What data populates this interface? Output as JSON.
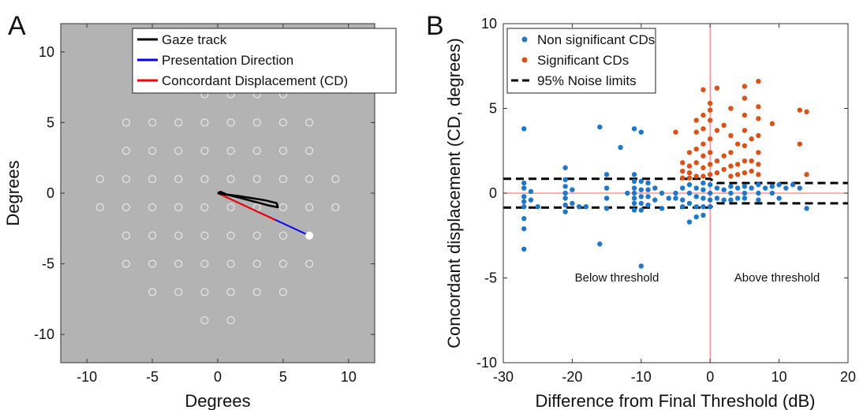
{
  "panel_a": {
    "letter": "A",
    "xlabel": "Degrees",
    "ylabel": "Degrees",
    "legend": [
      {
        "label": "Gaze track",
        "color": "#000000"
      },
      {
        "label": "Presentation Direction",
        "color": "#0000ff"
      },
      {
        "label": "Concordant Displacement (CD)",
        "color": "#ff0000"
      }
    ]
  },
  "panel_b": {
    "letter": "B",
    "xlabel": "Difference from Final Threshold (dB)",
    "ylabel": "Concordant displacement (CD, degrees)",
    "legend": [
      {
        "label": "Non significant CDs",
        "color": "#1f77c9"
      },
      {
        "label": "Significant CDs",
        "color": "#d95319"
      },
      {
        "label": "95% Noise limits",
        "color": "#000000"
      }
    ],
    "annotation_left": "Below threshold",
    "annotation_right": "Above threshold"
  },
  "chart_data": [
    {
      "type": "scatter",
      "panel": "A",
      "background": "#b3b3b3",
      "xlim": [
        -12,
        12
      ],
      "ylim": [
        -12,
        12
      ],
      "xticks": [
        -10,
        -5,
        0,
        5,
        10
      ],
      "yticks": [
        -10,
        -5,
        0,
        5,
        10
      ],
      "grid": false,
      "legend_position": "top-right",
      "stimulus_grid": [
        [
          -1,
          7
        ],
        [
          1,
          7
        ],
        [
          3,
          7
        ],
        [
          5,
          7
        ],
        [
          -7,
          5
        ],
        [
          -5,
          5
        ],
        [
          -3,
          5
        ],
        [
          -1,
          5
        ],
        [
          1,
          5
        ],
        [
          3,
          5
        ],
        [
          5,
          5
        ],
        [
          7,
          5
        ],
        [
          -7,
          3
        ],
        [
          -5,
          3
        ],
        [
          -3,
          3
        ],
        [
          -1,
          3
        ],
        [
          1,
          3
        ],
        [
          3,
          3
        ],
        [
          5,
          3
        ],
        [
          7,
          3
        ],
        [
          -9,
          1
        ],
        [
          -7,
          1
        ],
        [
          -5,
          1
        ],
        [
          -3,
          1
        ],
        [
          -1,
          1
        ],
        [
          1,
          1
        ],
        [
          3,
          1
        ],
        [
          5,
          1
        ],
        [
          7,
          1
        ],
        [
          9,
          1
        ],
        [
          -9,
          -1
        ],
        [
          -7,
          -1
        ],
        [
          -5,
          -1
        ],
        [
          -3,
          -1
        ],
        [
          -1,
          -1
        ],
        [
          1,
          -1
        ],
        [
          3,
          -1
        ],
        [
          5,
          -1
        ],
        [
          7,
          -1
        ],
        [
          9,
          -1
        ],
        [
          -7,
          -3
        ],
        [
          -5,
          -3
        ],
        [
          -3,
          -3
        ],
        [
          -1,
          -3
        ],
        [
          1,
          -3
        ],
        [
          3,
          -3
        ],
        [
          5,
          -3
        ],
        [
          7,
          -3
        ],
        [
          -7,
          -5
        ],
        [
          -5,
          -5
        ],
        [
          -3,
          -5
        ],
        [
          -1,
          -5
        ],
        [
          1,
          -5
        ],
        [
          3,
          -5
        ],
        [
          5,
          -5
        ],
        [
          7,
          -5
        ],
        [
          -5,
          -7
        ],
        [
          -3,
          -7
        ],
        [
          -1,
          -7
        ],
        [
          1,
          -7
        ],
        [
          3,
          -7
        ],
        [
          5,
          -7
        ],
        [
          -1,
          -9
        ],
        [
          1,
          -9
        ]
      ],
      "presented_stimulus": [
        7,
        -3
      ],
      "gaze_track": [
        [
          0,
          0
        ],
        [
          0.3,
          -0.05
        ],
        [
          0.9,
          -0.15
        ],
        [
          1.8,
          -0.35
        ],
        [
          2.8,
          -0.6
        ],
        [
          3.8,
          -0.85
        ],
        [
          4.6,
          -1.0
        ],
        [
          4.5,
          -0.7
        ],
        [
          3.6,
          -0.5
        ],
        [
          2.6,
          -0.35
        ],
        [
          1.6,
          -0.2
        ],
        [
          0.7,
          -0.1
        ],
        [
          0.2,
          0.1
        ],
        [
          0,
          0
        ]
      ],
      "presentation_direction": {
        "from": [
          0,
          0
        ],
        "to": [
          7,
          -3
        ]
      },
      "concordant_displacement": {
        "from": [
          0,
          0
        ],
        "to": [
          4.4,
          -1.9
        ]
      }
    },
    {
      "type": "scatter",
      "panel": "B",
      "xlim": [
        -30,
        20
      ],
      "ylim": [
        -10,
        10
      ],
      "xticks": [
        -30,
        -20,
        -10,
        0,
        10,
        20
      ],
      "yticks": [
        -10,
        -5,
        0,
        5,
        10
      ],
      "grid": false,
      "legend_position": "top-left",
      "reference_lines": {
        "x": 0,
        "y": 0,
        "color": "#ff7f7f"
      },
      "noise_limits": {
        "upper": [
          [
            -30,
            0.85
          ],
          [
            0,
            0.85
          ],
          [
            1,
            0.6
          ],
          [
            20,
            0.6
          ]
        ],
        "lower": [
          [
            -30,
            -0.85
          ],
          [
            0,
            -0.85
          ],
          [
            1,
            -0.6
          ],
          [
            20,
            -0.6
          ]
        ]
      },
      "series": [
        {
          "name": "Non significant CDs",
          "color": "#1f77c9",
          "points": [
            [
              -27,
              3.8
            ],
            [
              -27,
              0.6
            ],
            [
              -27,
              0.3
            ],
            [
              -27,
              -0.2
            ],
            [
              -27,
              -0.5
            ],
            [
              -27,
              -0.8
            ],
            [
              -27,
              -1.5
            ],
            [
              -27,
              -2.1
            ],
            [
              -27,
              -3.3
            ],
            [
              -26,
              0.1
            ],
            [
              -26,
              -0.4
            ],
            [
              -25,
              -0.8
            ],
            [
              -21,
              1.5
            ],
            [
              -21,
              0.8
            ],
            [
              -21,
              0.4
            ],
            [
              -21,
              0.0
            ],
            [
              -21,
              -0.3
            ],
            [
              -21,
              -0.7
            ],
            [
              -21,
              -1.1
            ],
            [
              -20,
              0.2
            ],
            [
              -20,
              -0.6
            ],
            [
              -19,
              -0.8
            ],
            [
              -18,
              -0.8
            ],
            [
              -16,
              3.9
            ],
            [
              -16,
              -3.0
            ],
            [
              -15,
              1.1
            ],
            [
              -15,
              0.3
            ],
            [
              -15,
              -0.3
            ],
            [
              -15,
              -0.9
            ],
            [
              -13,
              2.7
            ],
            [
              -12,
              0.0
            ],
            [
              -11,
              3.8
            ],
            [
              -11,
              1.1
            ],
            [
              -11,
              0.7
            ],
            [
              -11,
              0.3
            ],
            [
              -11,
              0.0
            ],
            [
              -11,
              -0.3
            ],
            [
              -11,
              -0.6
            ],
            [
              -11,
              -1.0
            ],
            [
              -10,
              3.6
            ],
            [
              -10,
              0.7
            ],
            [
              -10,
              0.2
            ],
            [
              -10,
              -0.2
            ],
            [
              -10,
              -0.6
            ],
            [
              -10,
              -1.0
            ],
            [
              -10,
              -4.3
            ],
            [
              -9,
              0.6
            ],
            [
              -9,
              0.2
            ],
            [
              -9,
              -0.2
            ],
            [
              -9,
              -0.7
            ],
            [
              -8,
              0.3
            ],
            [
              -8,
              -0.4
            ],
            [
              -7,
              0.0
            ],
            [
              -7,
              -0.9
            ],
            [
              -6,
              -0.3
            ],
            [
              -5,
              0.0
            ],
            [
              -5,
              -0.3
            ],
            [
              -4,
              0.3
            ],
            [
              -4,
              -0.4
            ],
            [
              -4,
              -0.8
            ],
            [
              -3,
              0.5
            ],
            [
              -3,
              0.0
            ],
            [
              -3,
              -0.6
            ],
            [
              -3,
              -1.7
            ],
            [
              -2,
              0.3
            ],
            [
              -2,
              -0.2
            ],
            [
              -2,
              -0.8
            ],
            [
              -2,
              -1.4
            ],
            [
              -1,
              0.6
            ],
            [
              -1,
              0.2
            ],
            [
              -1,
              -0.3
            ],
            [
              -1,
              -0.8
            ],
            [
              -1,
              -1.3
            ],
            [
              0,
              0.5
            ],
            [
              0,
              0.0
            ],
            [
              0,
              -0.4
            ],
            [
              0,
              -0.8
            ],
            [
              1,
              0.3
            ],
            [
              1,
              -0.3
            ],
            [
              2,
              0.2
            ],
            [
              2,
              -0.4
            ],
            [
              3,
              0.4
            ],
            [
              3,
              0.0
            ],
            [
              3,
              -0.4
            ],
            [
              4,
              0.3
            ],
            [
              4,
              -0.3
            ],
            [
              5,
              0.4
            ],
            [
              5,
              0.0
            ],
            [
              5,
              -0.3
            ],
            [
              6,
              0.3
            ],
            [
              7,
              0.5
            ],
            [
              7,
              0.0
            ],
            [
              7,
              -0.4
            ],
            [
              8,
              0.3
            ],
            [
              9,
              0.4
            ],
            [
              9,
              0.0
            ],
            [
              10,
              0.5
            ],
            [
              10,
              -0.3
            ],
            [
              11,
              0.3
            ],
            [
              12,
              0.5
            ],
            [
              13,
              0.3
            ],
            [
              14,
              -0.9
            ]
          ]
        },
        {
          "name": "Significant CDs",
          "color": "#d95319",
          "points": [
            [
              -5,
              3.6
            ],
            [
              -4,
              1.8
            ],
            [
              -4,
              1.3
            ],
            [
              -4,
              0.9
            ],
            [
              -3,
              2.4
            ],
            [
              -3,
              1.6
            ],
            [
              -3,
              1.2
            ],
            [
              -3,
              0.9
            ],
            [
              -2,
              4.3
            ],
            [
              -2,
              3.6
            ],
            [
              -2,
              2.6
            ],
            [
              -2,
              1.8
            ],
            [
              -2,
              1.0
            ],
            [
              -1,
              6.1
            ],
            [
              -1,
              4.6
            ],
            [
              -1,
              3.8
            ],
            [
              -1,
              2.9
            ],
            [
              -1,
              2.2
            ],
            [
              -1,
              1.5
            ],
            [
              -1,
              1.0
            ],
            [
              0,
              5.3
            ],
            [
              0,
              4.9
            ],
            [
              0,
              4.3
            ],
            [
              0,
              3.2
            ],
            [
              0,
              2.4
            ],
            [
              0,
              1.7
            ],
            [
              0,
              1.1
            ],
            [
              1,
              6.2
            ],
            [
              1,
              3.7
            ],
            [
              1,
              1.9
            ],
            [
              1,
              1.2
            ],
            [
              2,
              4.0
            ],
            [
              2,
              2.2
            ],
            [
              2,
              1.4
            ],
            [
              3,
              5.0
            ],
            [
              3,
              3.4
            ],
            [
              3,
              2.4
            ],
            [
              3,
              1.6
            ],
            [
              3,
              1.0
            ],
            [
              4,
              2.9
            ],
            [
              4,
              1.7
            ],
            [
              4,
              1.1
            ],
            [
              5,
              6.3
            ],
            [
              5,
              5.6
            ],
            [
              5,
              4.6
            ],
            [
              5,
              3.7
            ],
            [
              5,
              2.8
            ],
            [
              5,
              1.9
            ],
            [
              5,
              1.2
            ],
            [
              6,
              3.2
            ],
            [
              6,
              1.9
            ],
            [
              6,
              1.3
            ],
            [
              7,
              6.6
            ],
            [
              7,
              5.1
            ],
            [
              7,
              4.4
            ],
            [
              7,
              3.4
            ],
            [
              7,
              2.4
            ],
            [
              7,
              1.7
            ],
            [
              7,
              1.1
            ],
            [
              9,
              4.1
            ],
            [
              13,
              4.9
            ],
            [
              13,
              2.9
            ],
            [
              14,
              4.8
            ],
            [
              14,
              1.1
            ]
          ]
        }
      ]
    }
  ]
}
